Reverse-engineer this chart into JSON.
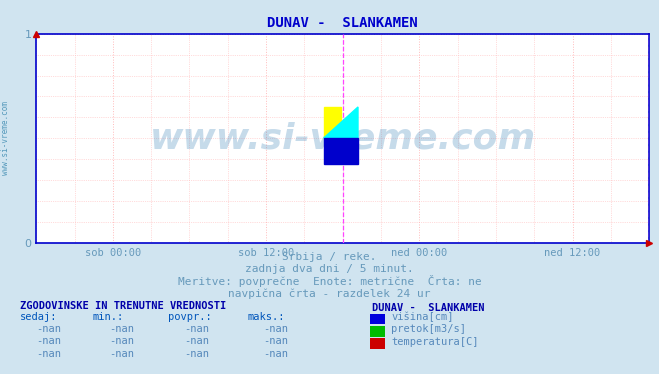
{
  "title": "DUNAV -  SLANKAMEN",
  "title_color": "#0000cc",
  "bg_color": "#d0e4f0",
  "plot_bg_color": "#ffffff",
  "grid_color_h": "#ffbbbb",
  "grid_color_v": "#ffdddd",
  "grid_linestyle": ":",
  "ylim": [
    0,
    1
  ],
  "yticks": [
    0,
    1
  ],
  "xlim": [
    0,
    576
  ],
  "xtick_positions": [
    72,
    216,
    360,
    504
  ],
  "xtick_labels": [
    "sob 00:00",
    "sob 12:00",
    "ned 00:00",
    "ned 12:00"
  ],
  "xtick_color": "#6699bb",
  "ytick_color": "#6699bb",
  "axis_color": "#0000cc",
  "arrow_color": "#cc0000",
  "vline_positions": [
    288,
    576
  ],
  "vline_color": "#ff44ff",
  "vline_style": "--",
  "watermark_text": "www.si-vreme.com",
  "watermark_color": "#4488bb",
  "watermark_alpha": 0.3,
  "sidebar_text": "www.si-vreme.com",
  "sidebar_color": "#5599bb",
  "subtitle1": "Srbija / reke.",
  "subtitle2": "zadnja dva dni / 5 minut.",
  "subtitle3": "Meritve: povprečne  Enote: metrične  Črta: ne",
  "subtitle4": "navpična črta - razdelek 24 ur",
  "subtitle_color": "#6699bb",
  "table_header": "ZGODOVINSKE IN TRENUTNE VREDNOSTI",
  "table_header_color": "#0000aa",
  "col_headers": [
    "sedaj:",
    "min.:",
    "povpr.:",
    "maks.:"
  ],
  "col_header_color": "#0055bb",
  "rows": [
    [
      "-nan",
      "-nan",
      "-nan",
      "-nan"
    ],
    [
      "-nan",
      "-nan",
      "-nan",
      "-nan"
    ],
    [
      "-nan",
      "-nan",
      "-nan",
      "-nan"
    ]
  ],
  "row_color": "#5588bb",
  "legend_title": "DUNAV -  SLANKAMEN",
  "legend_title_color": "#0000aa",
  "legend_items": [
    {
      "label": "višina[cm]",
      "color": "#0000dd"
    },
    {
      "label": "pretok[m3/s]",
      "color": "#00bb00"
    },
    {
      "label": "temperatura[C]",
      "color": "#cc0000"
    }
  ],
  "legend_label_color": "#5588bb",
  "logo_yellow": "#ffff00",
  "logo_cyan": "#00ffff",
  "logo_blue": "#0000cc"
}
